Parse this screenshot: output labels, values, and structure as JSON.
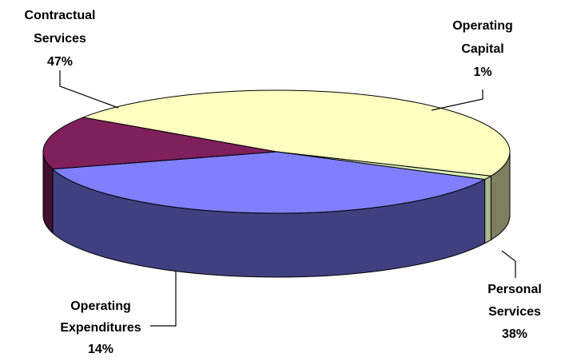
{
  "chart_data": {
    "type": "pie",
    "style": "3d-exploded-none",
    "slices": [
      {
        "label_lines": [
          "Contractual",
          "Services"
        ],
        "pct_label": "47%",
        "value": 47,
        "color": "#FFFFC0",
        "side_color": "#7E7E61"
      },
      {
        "label_lines": [
          "Operating",
          "Capital"
        ],
        "pct_label": "1%",
        "value": 1,
        "color": "#D9EFB8",
        "side_color": "#A7B98C"
      },
      {
        "label_lines": [
          "Personal",
          "Services"
        ],
        "pct_label": "38%",
        "value": 38,
        "color": "#8080FF",
        "side_color": "#404080"
      },
      {
        "label_lines": [
          "Operating",
          "Expenditures"
        ],
        "pct_label": "14%",
        "value": 14,
        "color": "#7F1F5C",
        "side_color": "#3F112F"
      }
    ],
    "legend": "none",
    "title": ""
  }
}
